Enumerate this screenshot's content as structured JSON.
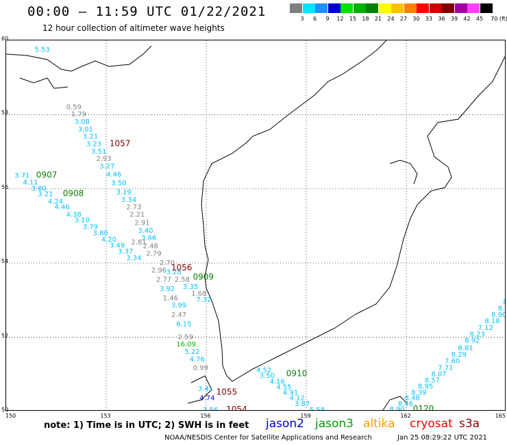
{
  "header": {
    "title": "00:00 – 11:59 UTC 01/22/2021",
    "subtitle": "12 hour collection of altimeter wave heights"
  },
  "colorbar": {
    "labels": [
      "3",
      "6",
      "9",
      "12",
      "15",
      "18",
      "21",
      "24",
      "27",
      "30",
      "33",
      "36",
      "39",
      "42",
      "45",
      "70 (ft)"
    ],
    "colors": [
      "#7f7f7f",
      "#00e5ff",
      "#1e90ff",
      "#0000cc",
      "#00e000",
      "#00b000",
      "#008000",
      "#ffff00",
      "#ffc000",
      "#ff8000",
      "#ff0000",
      "#cc0000",
      "#800000",
      "#a000a0",
      "#ff40ff",
      "#000000"
    ]
  },
  "axes": {
    "x_ticks": [
      "150",
      "153",
      "156",
      "159",
      "162",
      "165"
    ],
    "y_ticks": [
      "60",
      "58",
      "56",
      "54",
      "52",
      "50"
    ]
  },
  "map_data": {
    "lon_range": [
      150,
      165
    ],
    "lat_range": [
      50,
      60
    ],
    "passes": [
      {
        "id": "1057",
        "color": "#800000",
        "lon": 153.1,
        "lat": 57.15
      },
      {
        "id": "0907",
        "color": "#008000",
        "lon": 150.9,
        "lat": 56.3
      },
      {
        "id": "0908",
        "color": "#008000",
        "lon": 151.7,
        "lat": 55.8
      },
      {
        "id": "1056",
        "color": "#800000",
        "lon": 154.95,
        "lat": 53.8
      },
      {
        "id": "0909",
        "color": "#008000",
        "lon": 155.6,
        "lat": 53.55
      },
      {
        "id": "0910",
        "color": "#008000",
        "lon": 158.4,
        "lat": 50.95
      },
      {
        "id": "1055",
        "color": "#800000",
        "lon": 156.3,
        "lat": 50.45
      },
      {
        "id": "1054",
        "color": "#800000",
        "lon": 156.6,
        "lat": 49.98
      },
      {
        "id": "0120",
        "color": "#008000",
        "lon": 162.2,
        "lat": 50.0
      }
    ],
    "readings": [
      {
        "v": "5.53",
        "c": "#00bfff",
        "lon": 150.85,
        "lat": 59.7
      },
      {
        "v": "0.59",
        "c": "#808080",
        "lon": 151.8,
        "lat": 58.15
      },
      {
        "v": "1.79",
        "c": "#808080",
        "lon": 151.95,
        "lat": 57.95
      },
      {
        "v": "3.08",
        "c": "#00bfff",
        "lon": 152.05,
        "lat": 57.75
      },
      {
        "v": "3.01",
        "c": "#00bfff",
        "lon": 152.15,
        "lat": 57.55
      },
      {
        "v": "3.21",
        "c": "#00bfff",
        "lon": 152.3,
        "lat": 57.35
      },
      {
        "v": "3.23",
        "c": "#00bfff",
        "lon": 152.4,
        "lat": 57.15
      },
      {
        "v": "3.51",
        "c": "#00bfff",
        "lon": 152.55,
        "lat": 56.95
      },
      {
        "v": "2.93",
        "c": "#808080",
        "lon": 152.7,
        "lat": 56.75
      },
      {
        "v": "3.27",
        "c": "#00bfff",
        "lon": 152.8,
        "lat": 56.55
      },
      {
        "v": "4.46",
        "c": "#00bfff",
        "lon": 153.0,
        "lat": 56.33
      },
      {
        "v": "3.50",
        "c": "#00bfff",
        "lon": 153.15,
        "lat": 56.1
      },
      {
        "v": "3.19",
        "c": "#00bfff",
        "lon": 153.3,
        "lat": 55.85
      },
      {
        "v": "3.34",
        "c": "#00bfff",
        "lon": 153.45,
        "lat": 55.65
      },
      {
        "v": "2.73",
        "c": "#808080",
        "lon": 153.6,
        "lat": 55.45
      },
      {
        "v": "2.21",
        "c": "#808080",
        "lon": 153.7,
        "lat": 55.25
      },
      {
        "v": "2.91",
        "c": "#808080",
        "lon": 153.85,
        "lat": 55.03
      },
      {
        "v": "3.40",
        "c": "#00bfff",
        "lon": 153.95,
        "lat": 54.82
      },
      {
        "v": "3.66",
        "c": "#00bfff",
        "lon": 154.05,
        "lat": 54.62
      },
      {
        "v": "2.81",
        "c": "#808080",
        "lon": 153.75,
        "lat": 54.5
      },
      {
        "v": "2.48",
        "c": "#808080",
        "lon": 154.1,
        "lat": 54.4
      },
      {
        "v": "2.79",
        "c": "#808080",
        "lon": 154.2,
        "lat": 54.2
      },
      {
        "v": "2.70",
        "c": "#808080",
        "lon": 154.6,
        "lat": 53.95
      },
      {
        "v": "2.96",
        "c": "#808080",
        "lon": 154.35,
        "lat": 53.75
      },
      {
        "v": "2.77",
        "c": "#808080",
        "lon": 154.5,
        "lat": 53.5
      },
      {
        "v": "1.46",
        "c": "#808080",
        "lon": 154.7,
        "lat": 53.0
      },
      {
        "v": "2.47",
        "c": "#808080",
        "lon": 154.95,
        "lat": 52.55
      },
      {
        "v": "2.59",
        "c": "#808080",
        "lon": 155.15,
        "lat": 51.95
      },
      {
        "v": "3.71",
        "c": "#00bfff",
        "lon": 150.25,
        "lat": 56.3
      },
      {
        "v": "4.11",
        "c": "#00bfff",
        "lon": 150.5,
        "lat": 56.12
      },
      {
        "v": "3.80",
        "c": "#00bfff",
        "lon": 150.75,
        "lat": 55.95
      },
      {
        "v": "3.21",
        "c": "#00bfff",
        "lon": 150.95,
        "lat": 55.8
      },
      {
        "v": "4.24",
        "c": "#00bfff",
        "lon": 151.25,
        "lat": 55.6
      },
      {
        "v": "4.46",
        "c": "#00bfff",
        "lon": 151.45,
        "lat": 55.45
      },
      {
        "v": "4.38",
        "c": "#00bfff",
        "lon": 151.8,
        "lat": 55.25
      },
      {
        "v": "3.10",
        "c": "#00bfff",
        "lon": 152.05,
        "lat": 55.1
      },
      {
        "v": "3.79",
        "c": "#00bfff",
        "lon": 152.3,
        "lat": 54.92
      },
      {
        "v": "3.80",
        "c": "#00bfff",
        "lon": 152.6,
        "lat": 54.75
      },
      {
        "v": "4.20",
        "c": "#00bfff",
        "lon": 152.85,
        "lat": 54.58
      },
      {
        "v": "3.49",
        "c": "#00bfff",
        "lon": 153.1,
        "lat": 54.42
      },
      {
        "v": "3.37",
        "c": "#00bfff",
        "lon": 153.35,
        "lat": 54.25
      },
      {
        "v": "3.34",
        "c": "#00bfff",
        "lon": 153.6,
        "lat": 54.08
      },
      {
        "v": "3.28",
        "c": "#00bfff",
        "lon": 154.8,
        "lat": 53.7
      },
      {
        "v": "2.58",
        "c": "#808080",
        "lon": 155.05,
        "lat": 53.5
      },
      {
        "v": "3.35",
        "c": "#00bfff",
        "lon": 155.3,
        "lat": 53.3
      },
      {
        "v": "1.68",
        "c": "#808080",
        "lon": 155.55,
        "lat": 53.12
      },
      {
        "v": "7.32",
        "c": "#00bfff",
        "lon": 155.7,
        "lat": 52.95
      },
      {
        "v": "3.92",
        "c": "#00bfff",
        "lon": 154.6,
        "lat": 53.25
      },
      {
        "v": "3.99",
        "c": "#00bfff",
        "lon": 154.95,
        "lat": 52.8
      },
      {
        "v": "6.15",
        "c": "#00bfff",
        "lon": 155.1,
        "lat": 52.3
      },
      {
        "v": "16.09",
        "c": "#00b000",
        "lon": 155.1,
        "lat": 51.75
      },
      {
        "v": "5.22",
        "c": "#00bfff",
        "lon": 155.35,
        "lat": 51.55
      },
      {
        "v": "4.76",
        "c": "#00bfff",
        "lon": 155.5,
        "lat": 51.35
      },
      {
        "v": "0.99",
        "c": "#808080",
        "lon": 155.6,
        "lat": 51.12
      },
      {
        "v": "3.41",
        "c": "#00bfff",
        "lon": 155.75,
        "lat": 50.55
      },
      {
        "v": "4.74",
        "c": "#0000cc",
        "lon": 155.8,
        "lat": 50.3
      },
      {
        "v": "3.56",
        "c": "#00bfff",
        "lon": 155.9,
        "lat": 49.98
      },
      {
        "v": "4.52",
        "c": "#00bfff",
        "lon": 157.5,
        "lat": 51.05
      },
      {
        "v": "3.50",
        "c": "#00bfff",
        "lon": 157.6,
        "lat": 50.9
      },
      {
        "v": "4.16",
        "c": "#00bfff",
        "lon": 157.9,
        "lat": 50.75
      },
      {
        "v": "4.55",
        "c": "#00bfff",
        "lon": 158.1,
        "lat": 50.6
      },
      {
        "v": "4.91",
        "c": "#00bfff",
        "lon": 158.3,
        "lat": 50.45
      },
      {
        "v": "4.12",
        "c": "#00bfff",
        "lon": 158.5,
        "lat": 50.3
      },
      {
        "v": "3.87",
        "c": "#00bfff",
        "lon": 158.65,
        "lat": 50.15
      },
      {
        "v": "5.58",
        "c": "#00bfff",
        "lon": 159.1,
        "lat": 49.98
      },
      {
        "v": "8.90",
        "c": "#00bfff",
        "lon": 161.5,
        "lat": 50.0
      },
      {
        "v": "8.46",
        "c": "#00bfff",
        "lon": 161.75,
        "lat": 50.15
      },
      {
        "v": "8.48",
        "c": "#00bfff",
        "lon": 161.95,
        "lat": 50.3
      },
      {
        "v": "8.39",
        "c": "#00bfff",
        "lon": 162.15,
        "lat": 50.45
      },
      {
        "v": "8.95",
        "c": "#00bfff",
        "lon": 162.35,
        "lat": 50.62
      },
      {
        "v": "8.57",
        "c": "#00bfff",
        "lon": 162.55,
        "lat": 50.78
      },
      {
        "v": "8.07",
        "c": "#00bfff",
        "lon": 162.75,
        "lat": 50.95
      },
      {
        "v": "7.71",
        "c": "#00bfff",
        "lon": 162.95,
        "lat": 51.12
      },
      {
        "v": "7.60",
        "c": "#00bfff",
        "lon": 163.15,
        "lat": 51.3
      },
      {
        "v": "8.29",
        "c": "#00bfff",
        "lon": 163.35,
        "lat": 51.48
      },
      {
        "v": "8.81",
        "c": "#00bfff",
        "lon": 163.55,
        "lat": 51.65
      },
      {
        "v": "8.92",
        "c": "#00bfff",
        "lon": 163.75,
        "lat": 51.85
      },
      {
        "v": "8.23",
        "c": "#00bfff",
        "lon": 163.9,
        "lat": 52.02
      },
      {
        "v": "7.12",
        "c": "#00bfff",
        "lon": 164.15,
        "lat": 52.2
      },
      {
        "v": "8.18",
        "c": "#00bfff",
        "lon": 164.35,
        "lat": 52.38
      },
      {
        "v": "8.90",
        "c": "#00bfff",
        "lon": 164.55,
        "lat": 52.55
      },
      {
        "v": "8.35",
        "c": "#00bfff",
        "lon": 164.75,
        "lat": 52.72
      },
      {
        "v": "8.37",
        "c": "#00bfff",
        "lon": 164.9,
        "lat": 52.9
      }
    ]
  },
  "footer": {
    "note": "note:  1) Time is in UTC;  2) SWH is in feet",
    "satellites": [
      {
        "name": "jason2",
        "color": "#0000cc"
      },
      {
        "name": "jason3",
        "color": "#00a000"
      },
      {
        "name": "altika",
        "color": "#ff9900"
      },
      {
        "name": "cryosat",
        "color": "#ee0000"
      },
      {
        "name": "s3a",
        "color": "#880000"
      }
    ],
    "credit": "NOAA/NESDIS Center for Satellite Applications and Research",
    "timestamp": "Jan 25 08:29:22 UTC 2021"
  }
}
